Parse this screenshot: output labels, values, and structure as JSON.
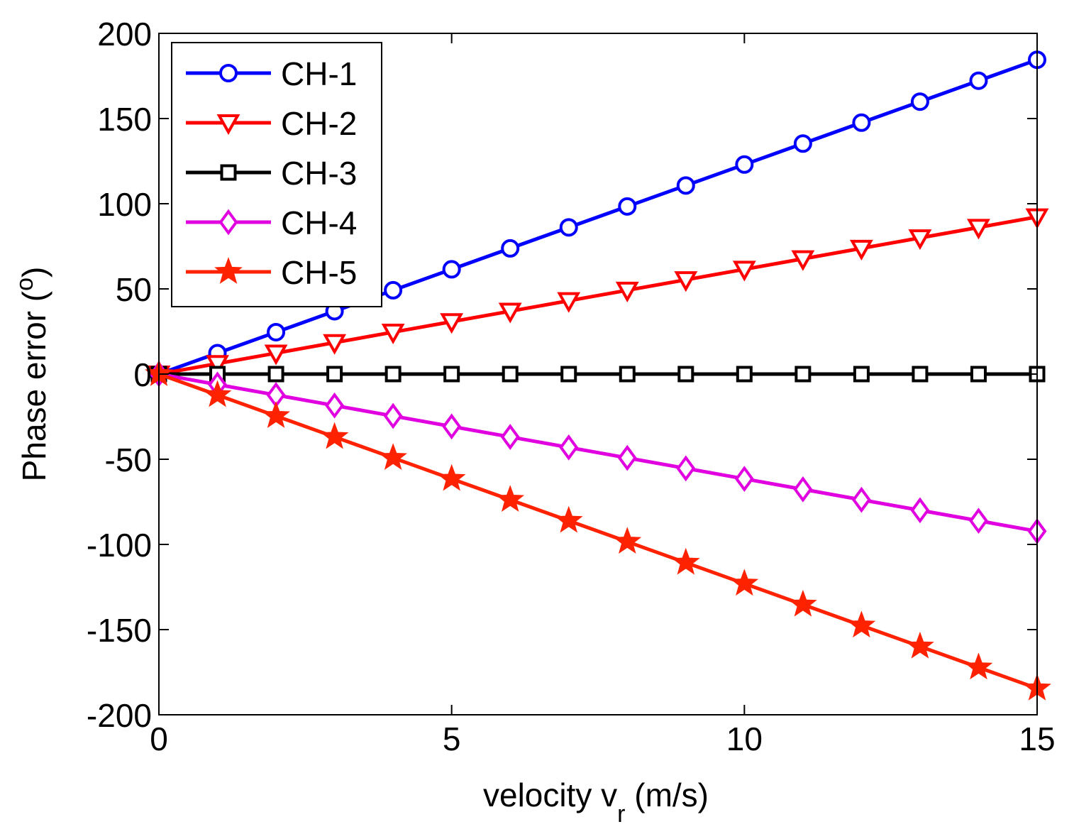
{
  "chart_data": {
    "type": "line",
    "title": "",
    "xlabel": {
      "main": "velocity v",
      "subscript": "r",
      "units": " (m/s)"
    },
    "ylabel": {
      "main": "Phase error (",
      "superscript": "o",
      "close": ")"
    },
    "xlim": [
      0,
      15
    ],
    "ylim": [
      -200,
      200
    ],
    "xticks": [
      "0",
      "5",
      "10",
      "15"
    ],
    "yticks": [
      "200",
      "150",
      "100",
      "50",
      "0",
      "-50",
      "-100",
      "-150",
      "-200"
    ],
    "x": [
      0,
      1,
      2,
      3,
      4,
      5,
      6,
      7,
      8,
      9,
      10,
      11,
      12,
      13,
      14,
      15
    ],
    "legend_position": "top-left",
    "series": [
      {
        "name": "CH-1",
        "color": "#0000ff",
        "marker": "circle",
        "values": [
          0,
          12.3,
          24.6,
          36.9,
          49.2,
          61.5,
          73.8,
          86.1,
          98.4,
          110.7,
          123,
          135.3,
          147.6,
          159.9,
          172.2,
          184.5
        ]
      },
      {
        "name": "CH-2",
        "color": "#ff0000",
        "marker": "triangle-down",
        "values": [
          0,
          6.15,
          12.3,
          18.45,
          24.6,
          30.75,
          36.9,
          43.05,
          49.2,
          55.35,
          61.5,
          67.65,
          73.8,
          79.95,
          86.1,
          92.25
        ]
      },
      {
        "name": "CH-3",
        "color": "#000000",
        "marker": "square",
        "values": [
          0,
          0,
          0,
          0,
          0,
          0,
          0,
          0,
          0,
          0,
          0,
          0,
          0,
          0,
          0,
          0
        ]
      },
      {
        "name": "CH-4",
        "color": "#e000e0",
        "marker": "diamond",
        "values": [
          0,
          -6.15,
          -12.3,
          -18.45,
          -24.6,
          -30.75,
          -36.9,
          -43.05,
          -49.2,
          -55.35,
          -61.5,
          -67.65,
          -73.8,
          -79.95,
          -86.1,
          -92.25
        ]
      },
      {
        "name": "CH-5",
        "color": "#ff2200",
        "marker": "star",
        "values": [
          0,
          -12.3,
          -24.6,
          -36.9,
          -49.2,
          -61.5,
          -73.8,
          -86.1,
          -98.4,
          -110.7,
          -123,
          -135.3,
          -147.6,
          -159.9,
          -172.2,
          -184.5
        ]
      }
    ]
  }
}
